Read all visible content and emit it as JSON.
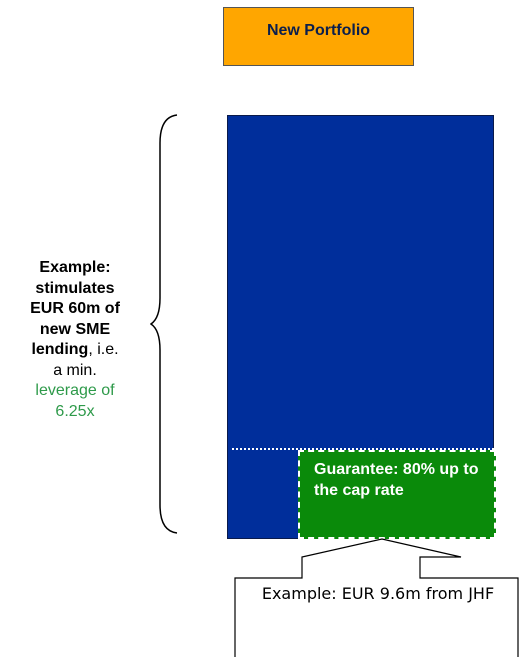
{
  "header": {
    "label": "New Portfolio",
    "color": "#ffa600"
  },
  "portfolio": {
    "color": "#002e9b"
  },
  "guarantee": {
    "text": "Guarantee: 80% up to the cap rate",
    "color": "#0a8a0a"
  },
  "left_label": {
    "line1": "Example:",
    "line2": "stimulates",
    "line3": "EUR 60m of",
    "line4": "new SME",
    "line5_bold": "lending",
    "line5_rest": ", i.e.",
    "line6": "a min.",
    "line7": "leverage of",
    "line8": "6.25x",
    "accent_color": "#2e9a4a"
  },
  "callout": {
    "text": "Example: EUR 9.6m from JHF"
  }
}
